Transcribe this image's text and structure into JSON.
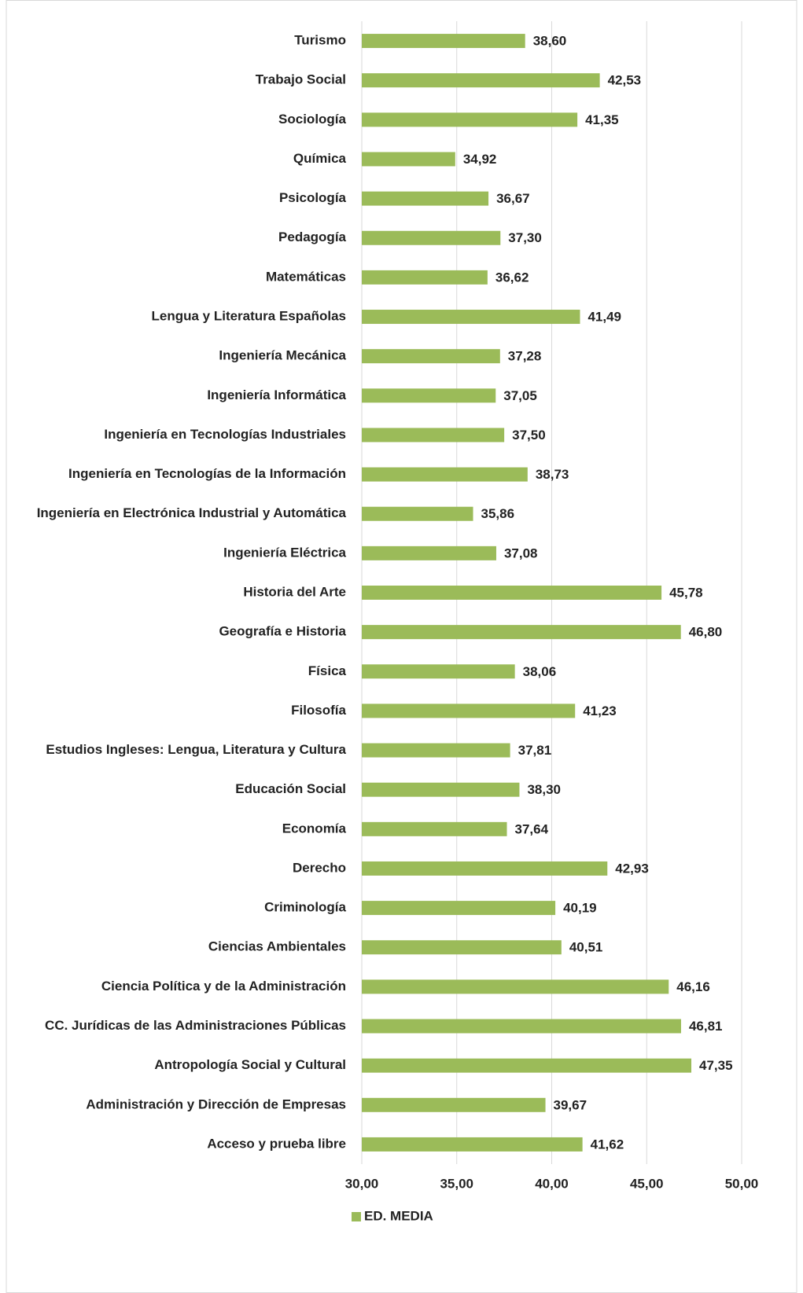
{
  "chart_data": {
    "type": "bar",
    "orientation": "horizontal",
    "categories": [
      "Turismo",
      "Trabajo Social",
      "Sociología",
      "Química",
      "Psicología",
      "Pedagogía",
      "Matemáticas",
      "Lengua y Literatura Españolas",
      "Ingeniería Mecánica",
      "Ingeniería Informática",
      "Ingeniería en Tecnologías Industriales",
      "Ingeniería en Tecnologías de la Información",
      "Ingeniería en Electrónica Industrial y Automática",
      "Ingeniería Eléctrica",
      "Historia del Arte",
      "Geografía e Historia",
      "Física",
      "Filosofía",
      "Estudios Ingleses: Lengua, Literatura y Cultura",
      "Educación Social",
      "Economía",
      "Derecho",
      "Criminología",
      "Ciencias Ambientales",
      "Ciencia Política y de la Administración",
      "CC. Jurídicas de las Administraciones Públicas",
      "Antropología Social y Cultural",
      "Administración y Dirección de Empresas",
      "Acceso y prueba libre"
    ],
    "series": [
      {
        "name": "ED. MEDIA",
        "color": "#9bbb59",
        "values": [
          38.6,
          42.53,
          41.35,
          34.92,
          36.67,
          37.3,
          36.62,
          41.49,
          37.28,
          37.05,
          37.5,
          38.73,
          35.86,
          37.08,
          45.78,
          46.8,
          38.06,
          41.23,
          37.81,
          38.3,
          37.64,
          42.93,
          40.19,
          40.51,
          46.16,
          46.81,
          47.35,
          39.67,
          41.62
        ],
        "value_labels": [
          "38,60",
          "42,53",
          "41,35",
          "34,92",
          "36,67",
          "37,30",
          "36,62",
          "41,49",
          "37,28",
          "37,05",
          "37,50",
          "38,73",
          "35,86",
          "37,08",
          "45,78",
          "46,80",
          "38,06",
          "41,23",
          "37,81",
          "38,30",
          "37,64",
          "42,93",
          "40,19",
          "40,51",
          "46,16",
          "46,81",
          "47,35",
          "39,67",
          "41,62"
        ]
      }
    ],
    "xlim": [
      30,
      50
    ],
    "xticks": [
      {
        "value": 30,
        "label": "30,00"
      },
      {
        "value": 35,
        "label": "35,00"
      },
      {
        "value": 40,
        "label": "40,00"
      },
      {
        "value": 45,
        "label": "45,00"
      },
      {
        "value": 50,
        "label": "50,00"
      }
    ],
    "grid": true,
    "legend": "bottom"
  }
}
